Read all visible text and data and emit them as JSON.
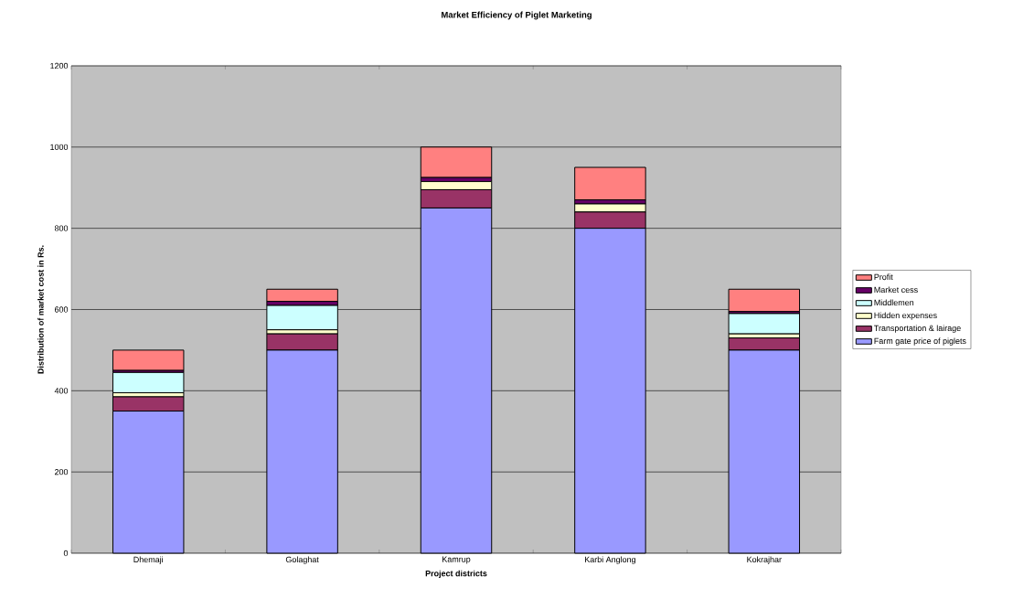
{
  "chart_data": {
    "type": "bar",
    "stacked": true,
    "title": "Market Efficiency of Piglet Marketing",
    "xlabel": "Project districts",
    "ylabel": "Distribution of market cost in Rs.",
    "categories": [
      "Dhemaji",
      "Golaghat",
      "Kamrup",
      "Karbi Anglong",
      "Kokrajhar"
    ],
    "series": [
      {
        "name": "Farm gate price of piglets",
        "color": "#9999ff",
        "values": [
          350,
          500,
          850,
          800,
          500
        ]
      },
      {
        "name": "Transportation & lairage",
        "color": "#993366",
        "values": [
          35,
          40,
          45,
          40,
          30
        ]
      },
      {
        "name": "Hidden expenses",
        "color": "#ffffcc",
        "values": [
          10,
          10,
          20,
          20,
          10
        ]
      },
      {
        "name": "Middlemen",
        "color": "#ccffff",
        "values": [
          50,
          60,
          0,
          0,
          50
        ]
      },
      {
        "name": "Market cess",
        "color": "#660066",
        "values": [
          5,
          10,
          10,
          10,
          5
        ]
      },
      {
        "name": "Profit",
        "color": "#ff8080",
        "values": [
          50,
          30,
          75,
          80,
          55
        ]
      }
    ],
    "ylim": [
      0,
      1200
    ],
    "yticks": [
      0,
      200,
      400,
      600,
      800,
      1000,
      1200
    ],
    "grid": "y",
    "legend": "right"
  }
}
